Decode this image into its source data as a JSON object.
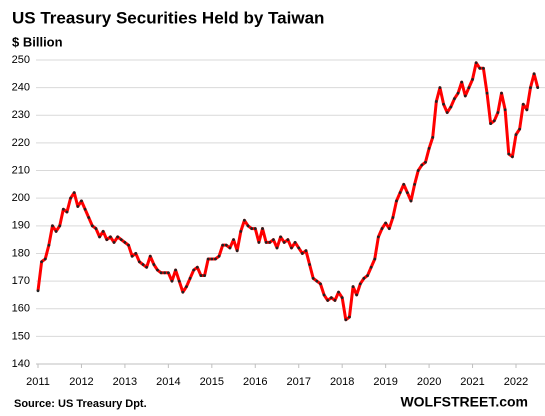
{
  "chart_data": {
    "type": "line",
    "title": "US Treasury Securities Held by Taiwan",
    "y_label": "$ Billion",
    "source": "Source: US Treasury  Dpt.",
    "credit": "WOLFSTREET.com",
    "categories": [
      "2011",
      null,
      null,
      null,
      null,
      null,
      null,
      null,
      null,
      null,
      null,
      null,
      "2012",
      null,
      null,
      null,
      null,
      null,
      null,
      null,
      null,
      null,
      null,
      null,
      "2013",
      null,
      null,
      null,
      null,
      null,
      null,
      null,
      null,
      null,
      null,
      null,
      "2014",
      null,
      null,
      null,
      null,
      null,
      null,
      null,
      null,
      null,
      null,
      null,
      "2015",
      null,
      null,
      null,
      null,
      null,
      null,
      null,
      null,
      null,
      null,
      null,
      "2016",
      null,
      null,
      null,
      null,
      null,
      null,
      null,
      null,
      null,
      null,
      null,
      "2017",
      null,
      null,
      null,
      null,
      null,
      null,
      null,
      null,
      null,
      null,
      null,
      "2018",
      null,
      null,
      null,
      null,
      null,
      null,
      null,
      null,
      null,
      null,
      null,
      "2019",
      null,
      null,
      null,
      null,
      null,
      null,
      null,
      null,
      null,
      null,
      null,
      "2020",
      null,
      null,
      null,
      null,
      null,
      null,
      null,
      null,
      null,
      null,
      null,
      "2021",
      null,
      null,
      null,
      null,
      null,
      null,
      null,
      null,
      null,
      null,
      null,
      "2022",
      null,
      null,
      null,
      null,
      null,
      null
    ],
    "series": [
      {
        "color": "#ff0000",
        "marker_color": "#222222",
        "values": [
          166.5,
          177,
          178,
          183,
          190,
          188,
          190,
          196,
          195,
          200,
          202,
          197,
          199,
          196,
          193,
          190,
          189,
          186,
          188,
          185,
          186,
          184,
          186,
          185,
          184,
          183,
          179,
          180,
          177,
          176,
          175,
          179,
          176,
          174,
          173,
          173,
          173,
          170,
          174,
          170,
          166,
          168,
          171,
          174,
          175,
          172,
          172,
          178,
          178,
          178,
          179,
          183,
          183,
          182,
          185,
          181,
          188,
          192,
          190,
          189,
          189,
          184,
          189,
          184,
          184,
          185,
          182,
          186,
          184,
          185,
          182,
          184,
          182,
          180,
          181,
          176,
          171,
          170,
          169,
          165,
          163,
          164,
          163,
          166,
          164,
          156,
          157,
          168,
          165,
          169,
          171,
          172,
          175,
          178,
          186,
          189,
          191,
          189,
          193,
          199,
          202,
          205,
          202,
          199,
          205,
          210,
          212,
          213,
          218,
          222,
          235,
          240,
          234,
          231,
          233,
          236,
          238,
          242,
          237,
          240,
          243,
          249,
          247,
          247,
          238,
          227,
          228,
          231,
          238,
          232,
          216,
          215,
          223,
          225,
          234,
          232,
          240,
          245,
          240
        ]
      }
    ],
    "ylim": [
      140,
      250
    ],
    "yticks": [
      140,
      150,
      160,
      170,
      180,
      190,
      200,
      210,
      220,
      230,
      240,
      250
    ],
    "grid": true
  }
}
